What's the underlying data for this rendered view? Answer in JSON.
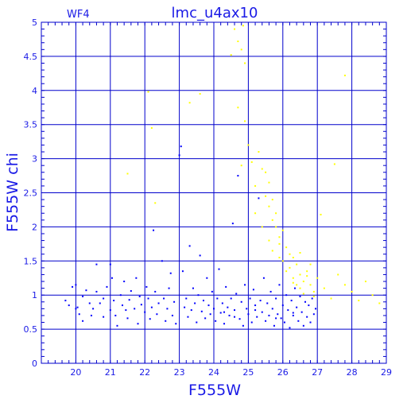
{
  "chart_data": {
    "type": "scatter",
    "title": "lmc_u4ax10",
    "corner_label": "WF4",
    "xlabel": "F555W",
    "ylabel": "F555W  chi",
    "xlim": [
      19,
      29
    ],
    "ylim": [
      0,
      5
    ],
    "x_ticks": [
      "20",
      "21",
      "22",
      "23",
      "24",
      "25",
      "26",
      "27",
      "28",
      "29"
    ],
    "y_ticks": [
      "0",
      "0.5",
      "1",
      "1.5",
      "2",
      "2.5",
      "3",
      "3.5",
      "4",
      "4.5",
      "5"
    ],
    "grid": true,
    "colors": {
      "axes": "#0000cc",
      "text": "#1a1ae6",
      "blue_series": "#0000ff",
      "yellow_series": "#ffff00"
    },
    "series": [
      {
        "color": "#0000ff",
        "points": [
          [
            19.7,
            0.92
          ],
          [
            19.8,
            0.85
          ],
          [
            19.9,
            1.12
          ],
          [
            20.0,
            1.15
          ],
          [
            20.0,
            0.8
          ],
          [
            20.05,
            0.82
          ],
          [
            20.1,
            0.72
          ],
          [
            20.2,
            0.98
          ],
          [
            20.2,
            0.62
          ],
          [
            20.3,
            1.07
          ],
          [
            20.4,
            0.88
          ],
          [
            20.45,
            0.7
          ],
          [
            20.5,
            0.8
          ],
          [
            20.6,
            1.45
          ],
          [
            20.6,
            1.05
          ],
          [
            20.7,
            0.88
          ],
          [
            20.8,
            0.95
          ],
          [
            20.8,
            0.68
          ],
          [
            20.9,
            1.12
          ],
          [
            21.0,
            0.78
          ],
          [
            21.0,
            1.45
          ],
          [
            21.05,
            1.25
          ],
          [
            21.1,
            0.92
          ],
          [
            21.15,
            0.7
          ],
          [
            21.2,
            0.55
          ],
          [
            21.3,
            1.0
          ],
          [
            21.35,
            0.85
          ],
          [
            21.4,
            1.2
          ],
          [
            21.45,
            0.78
          ],
          [
            21.5,
            0.66
          ],
          [
            21.55,
            0.93
          ],
          [
            21.6,
            1.06
          ],
          [
            21.7,
            0.8
          ],
          [
            21.75,
            1.25
          ],
          [
            21.8,
            0.58
          ],
          [
            21.85,
            0.98
          ],
          [
            21.9,
            0.86
          ],
          [
            22.0,
            0.75
          ],
          [
            22.05,
            1.12
          ],
          [
            22.1,
            0.95
          ],
          [
            22.15,
            0.65
          ],
          [
            22.2,
            0.82
          ],
          [
            22.25,
            1.95
          ],
          [
            22.3,
            1.05
          ],
          [
            22.35,
            0.72
          ],
          [
            22.4,
            0.88
          ],
          [
            22.5,
            1.5
          ],
          [
            22.55,
            0.95
          ],
          [
            22.6,
            0.62
          ],
          [
            22.65,
            0.8
          ],
          [
            22.7,
            1.1
          ],
          [
            22.75,
            1.32
          ],
          [
            22.8,
            0.7
          ],
          [
            22.85,
            0.9
          ],
          [
            22.9,
            0.58
          ],
          [
            23.0,
            3.05
          ],
          [
            23.05,
            3.18
          ],
          [
            23.1,
            1.35
          ],
          [
            23.15,
            0.82
          ],
          [
            23.2,
            0.95
          ],
          [
            23.25,
            0.68
          ],
          [
            23.3,
            1.72
          ],
          [
            23.35,
            0.78
          ],
          [
            23.4,
            1.1
          ],
          [
            23.45,
            0.88
          ],
          [
            23.5,
            0.6
          ],
          [
            23.55,
            1.0
          ],
          [
            23.6,
            1.58
          ],
          [
            23.65,
            0.76
          ],
          [
            23.7,
            0.92
          ],
          [
            23.75,
            0.66
          ],
          [
            23.8,
            1.25
          ],
          [
            23.85,
            0.85
          ],
          [
            23.9,
            0.72
          ],
          [
            23.95,
            1.05
          ],
          [
            24.0,
            0.8
          ],
          [
            24.05,
            0.62
          ],
          [
            24.1,
            0.95
          ],
          [
            24.15,
            1.38
          ],
          [
            24.2,
            0.74
          ],
          [
            24.25,
            0.88
          ],
          [
            24.3,
            0.58
          ],
          [
            24.35,
            1.12
          ],
          [
            24.4,
            0.82
          ],
          [
            24.45,
            0.7
          ],
          [
            24.5,
            0.95
          ],
          [
            24.55,
            2.05
          ],
          [
            24.6,
            0.78
          ],
          [
            24.65,
            1.02
          ],
          [
            24.7,
            2.75
          ],
          [
            24.75,
            0.65
          ],
          [
            24.8,
            0.9
          ],
          [
            24.85,
            0.55
          ],
          [
            24.9,
            1.15
          ],
          [
            24.95,
            0.8
          ],
          [
            25.0,
            0.72
          ],
          [
            25.05,
            0.95
          ],
          [
            25.1,
            0.6
          ],
          [
            25.15,
            1.08
          ],
          [
            25.2,
            0.85
          ],
          [
            25.25,
            0.68
          ],
          [
            25.3,
            2.42
          ],
          [
            25.35,
            0.92
          ],
          [
            25.4,
            0.75
          ],
          [
            25.45,
            1.25
          ],
          [
            25.5,
            0.62
          ],
          [
            25.55,
            0.88
          ],
          [
            25.6,
            0.7
          ],
          [
            25.65,
            1.05
          ],
          [
            25.7,
            0.8
          ],
          [
            25.75,
            0.55
          ],
          [
            25.8,
            0.95
          ],
          [
            25.85,
            0.72
          ],
          [
            25.9,
            1.15
          ],
          [
            25.95,
            0.66
          ],
          [
            26.0,
            0.85
          ],
          [
            26.05,
            0.6
          ],
          [
            26.1,
            1.0
          ],
          [
            26.15,
            0.78
          ],
          [
            26.2,
            0.52
          ],
          [
            26.25,
            0.92
          ],
          [
            26.3,
            0.7
          ],
          [
            26.35,
            1.1
          ],
          [
            26.4,
            0.82
          ],
          [
            26.45,
            0.62
          ],
          [
            26.5,
            0.98
          ],
          [
            26.55,
            0.75
          ],
          [
            26.6,
            0.55
          ],
          [
            26.65,
            0.9
          ],
          [
            26.7,
            0.68
          ],
          [
            26.75,
            0.85
          ],
          [
            26.8,
            0.6
          ],
          [
            26.85,
            0.95
          ],
          [
            26.9,
            0.72
          ],
          [
            26.95,
            0.8
          ],
          [
            24.3,
            0.75
          ],
          [
            24.6,
            0.68
          ],
          [
            25.2,
            0.78
          ],
          [
            25.8,
            0.66
          ],
          [
            26.3,
            0.74
          ]
        ]
      },
      {
        "color": "#ffff00",
        "points": [
          [
            21.5,
            2.78
          ],
          [
            22.1,
            3.98
          ],
          [
            22.2,
            3.45
          ],
          [
            22.3,
            2.35
          ],
          [
            23.3,
            3.82
          ],
          [
            23.6,
            3.95
          ],
          [
            24.5,
            4.52
          ],
          [
            24.6,
            4.9
          ],
          [
            24.7,
            4.72
          ],
          [
            24.8,
            4.6
          ],
          [
            24.85,
            4.95
          ],
          [
            24.9,
            4.4
          ],
          [
            24.7,
            3.75
          ],
          [
            24.9,
            3.55
          ],
          [
            25.0,
            3.2
          ],
          [
            24.8,
            2.9
          ],
          [
            25.1,
            2.95
          ],
          [
            25.2,
            2.6
          ],
          [
            25.3,
            3.1
          ],
          [
            25.4,
            2.85
          ],
          [
            25.5,
            2.45
          ],
          [
            25.6,
            2.3
          ],
          [
            25.7,
            2.1
          ],
          [
            25.8,
            2.0
          ],
          [
            25.9,
            1.85
          ],
          [
            26.0,
            1.95
          ],
          [
            26.1,
            1.7
          ],
          [
            26.2,
            1.6
          ],
          [
            26.3,
            1.55
          ],
          [
            26.4,
            1.45
          ],
          [
            26.5,
            1.3
          ],
          [
            26.6,
            1.2
          ],
          [
            26.7,
            1.35
          ],
          [
            26.8,
            1.15
          ],
          [
            26.9,
            1.05
          ],
          [
            27.0,
            1.25
          ],
          [
            27.2,
            1.1
          ],
          [
            27.4,
            0.95
          ],
          [
            27.6,
            1.3
          ],
          [
            27.8,
            1.15
          ],
          [
            28.0,
            1.05
          ],
          [
            28.2,
            0.92
          ],
          [
            28.4,
            1.2
          ],
          [
            28.6,
            1.0
          ],
          [
            28.8,
            0.88
          ],
          [
            25.5,
            2.8
          ],
          [
            25.6,
            2.65
          ],
          [
            25.7,
            2.4
          ],
          [
            25.8,
            2.2
          ],
          [
            25.9,
            1.75
          ],
          [
            26.0,
            1.5
          ],
          [
            26.2,
            1.4
          ],
          [
            26.3,
            1.25
          ],
          [
            26.4,
            1.15
          ],
          [
            26.5,
            1.1
          ],
          [
            26.6,
            1.02
          ],
          [
            26.8,
            1.45
          ],
          [
            27.1,
            2.18
          ],
          [
            27.5,
            2.92
          ],
          [
            27.8,
            4.22
          ],
          [
            25.2,
            2.2
          ],
          [
            25.4,
            2.0
          ],
          [
            25.6,
            1.8
          ],
          [
            25.7,
            1.65
          ],
          [
            25.9,
            1.55
          ],
          [
            26.1,
            1.35
          ],
          [
            26.3,
            1.18
          ],
          [
            26.5,
            1.62
          ],
          [
            26.7,
            1.28
          ],
          [
            26.9,
            0.98
          ]
        ]
      }
    ]
  }
}
